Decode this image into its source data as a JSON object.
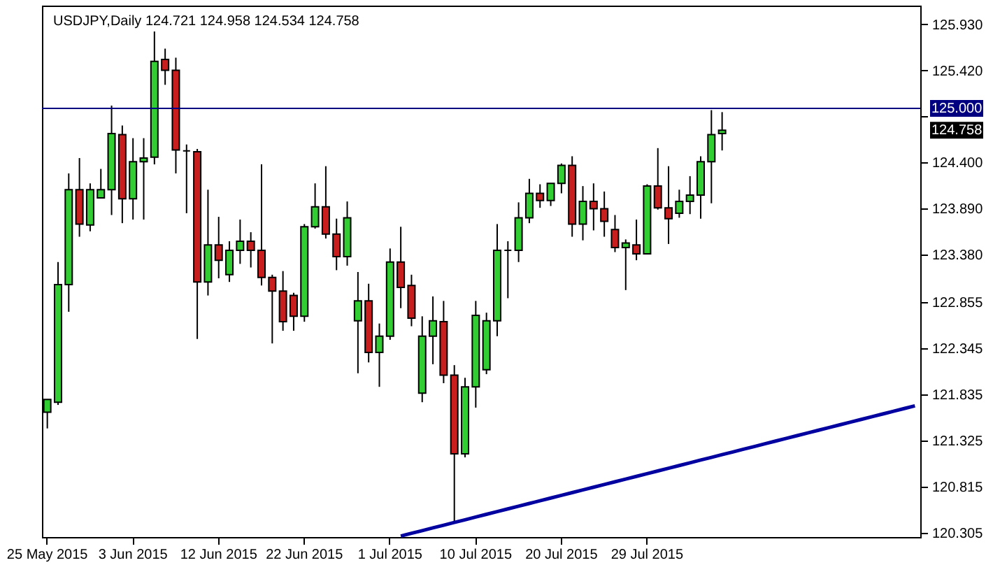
{
  "chart_data": {
    "type": "candlestick",
    "title": "USDJPY,Daily 124.721 124.958 124.534 124.758",
    "categories": [
      "25 May 2015",
      null,
      null,
      null,
      null,
      null,
      null,
      null,
      "3 Jun 2015",
      null,
      null,
      null,
      null,
      null,
      null,
      null,
      "12 Jun 2015",
      null,
      null,
      null,
      null,
      null,
      null,
      null,
      "22 Jun 2015",
      null,
      null,
      null,
      null,
      null,
      null,
      null,
      "1 Jul 2015",
      null,
      null,
      null,
      null,
      null,
      null,
      null,
      "10 Jul 2015",
      null,
      null,
      null,
      null,
      null,
      null,
      null,
      "20 Jul 2015",
      null,
      null,
      null,
      null,
      null,
      null,
      null,
      "29 Jul 2015",
      null,
      null,
      null,
      null,
      null,
      null,
      null,
      null,
      null,
      null,
      null,
      null,
      null,
      null,
      null,
      null,
      null,
      null,
      null,
      null,
      null,
      null,
      null,
      null,
      null
    ],
    "ohlc": [
      [
        121.64,
        121.78,
        121.46,
        121.78
      ],
      [
        121.75,
        123.3,
        121.72,
        123.05
      ],
      [
        123.05,
        124.28,
        122.75,
        124.1
      ],
      [
        124.1,
        124.45,
        123.58,
        123.72
      ],
      [
        123.71,
        124.17,
        123.64,
        124.1
      ],
      [
        124.01,
        124.33,
        124.01,
        124.1
      ],
      [
        124.1,
        125.03,
        123.82,
        124.72
      ],
      [
        124.71,
        124.81,
        123.73,
        124.0
      ],
      [
        124.0,
        124.67,
        123.77,
        124.41
      ],
      [
        124.41,
        124.67,
        123.77,
        124.45
      ],
      [
        124.46,
        125.85,
        124.38,
        125.52
      ],
      [
        125.54,
        125.66,
        125.26,
        125.42
      ],
      [
        125.42,
        125.56,
        124.28,
        124.54
      ],
      [
        124.53,
        124.6,
        123.84,
        124.53
      ],
      [
        124.52,
        124.55,
        122.45,
        123.08
      ],
      [
        123.08,
        124.1,
        122.93,
        123.49
      ],
      [
        123.49,
        123.8,
        123.12,
        123.32
      ],
      [
        123.16,
        123.53,
        123.08,
        123.43
      ],
      [
        123.43,
        123.77,
        123.28,
        123.53
      ],
      [
        123.53,
        123.63,
        123.24,
        123.43
      ],
      [
        123.43,
        124.38,
        123.04,
        123.13
      ],
      [
        123.13,
        123.16,
        122.4,
        122.98
      ],
      [
        122.98,
        123.2,
        122.54,
        122.64
      ],
      [
        122.93,
        122.96,
        122.54,
        122.7
      ],
      [
        122.7,
        123.72,
        122.64,
        123.69
      ],
      [
        123.69,
        124.17,
        123.67,
        123.91
      ],
      [
        123.91,
        124.36,
        123.56,
        123.61
      ],
      [
        123.61,
        123.78,
        123.21,
        123.36
      ],
      [
        123.36,
        123.97,
        123.26,
        123.79
      ],
      [
        122.65,
        123.19,
        122.07,
        122.87
      ],
      [
        122.87,
        123.06,
        122.19,
        122.3
      ],
      [
        122.3,
        122.62,
        121.92,
        122.48
      ],
      [
        122.48,
        123.45,
        122.44,
        123.3
      ],
      [
        123.3,
        123.69,
        122.79,
        123.02
      ],
      [
        123.04,
        123.16,
        122.59,
        122.68
      ],
      [
        121.85,
        122.7,
        121.75,
        122.48
      ],
      [
        122.48,
        122.92,
        122.17,
        122.65
      ],
      [
        122.64,
        122.87,
        121.96,
        122.05
      ],
      [
        122.05,
        122.16,
        120.42,
        121.18
      ],
      [
        121.18,
        122.02,
        121.14,
        121.92
      ],
      [
        121.92,
        122.87,
        121.69,
        122.71
      ],
      [
        122.11,
        122.74,
        122.06,
        122.65
      ],
      [
        122.65,
        123.72,
        122.48,
        123.43
      ],
      [
        123.43,
        123.53,
        122.9,
        123.43
      ],
      [
        123.43,
        123.96,
        123.3,
        123.79
      ],
      [
        123.79,
        124.22,
        123.73,
        124.06
      ],
      [
        124.06,
        124.16,
        123.9,
        123.98
      ],
      [
        123.98,
        124.17,
        123.92,
        124.17
      ],
      [
        124.17,
        124.39,
        124.06,
        124.37
      ],
      [
        124.37,
        124.47,
        123.58,
        123.72
      ],
      [
        123.72,
        124.14,
        123.54,
        123.97
      ],
      [
        123.97,
        124.17,
        123.65,
        123.89
      ],
      [
        123.89,
        124.08,
        123.58,
        123.75
      ],
      [
        123.66,
        123.82,
        123.41,
        123.46
      ],
      [
        123.46,
        123.55,
        122.99,
        123.51
      ],
      [
        123.49,
        123.77,
        123.32,
        123.39
      ],
      [
        123.39,
        124.16,
        123.39,
        124.14
      ],
      [
        124.14,
        124.56,
        123.88,
        123.9
      ],
      [
        123.9,
        124.36,
        123.5,
        123.78
      ],
      [
        123.84,
        124.1,
        123.79,
        123.97
      ],
      [
        123.97,
        124.25,
        123.83,
        124.04
      ],
      [
        124.04,
        124.47,
        123.78,
        124.41
      ],
      [
        124.41,
        124.98,
        123.95,
        124.71
      ],
      [
        124.721,
        124.958,
        124.534,
        124.758
      ],
      null,
      null,
      null,
      null,
      null,
      null,
      null,
      null,
      null,
      null,
      null,
      null,
      null,
      null,
      null,
      null,
      null,
      null
    ],
    "colors": [
      "#32cd32",
      "#32cd32",
      "#32cd32",
      "#c81e1e",
      "#32cd32",
      "#32cd32",
      "#32cd32",
      "#c81e1e",
      "#32cd32",
      "#32cd32",
      "#32cd32",
      "#c81e1e",
      "#c81e1e",
      "#000000",
      "#c81e1e",
      "#32cd32",
      "#c81e1e",
      "#32cd32",
      "#32cd32",
      "#c81e1e",
      "#c81e1e",
      "#c81e1e",
      "#c81e1e",
      "#c81e1e",
      "#32cd32",
      "#32cd32",
      "#c81e1e",
      "#c81e1e",
      "#32cd32",
      "#32cd32",
      "#c81e1e",
      "#32cd32",
      "#32cd32",
      "#c81e1e",
      "#c81e1e",
      "#32cd32",
      "#32cd32",
      "#c81e1e",
      "#c81e1e",
      "#32cd32",
      "#32cd32",
      "#32cd32",
      "#32cd32",
      "#000000",
      "#32cd32",
      "#32cd32",
      "#c81e1e",
      "#32cd32",
      "#32cd32",
      "#c81e1e",
      "#32cd32",
      "#c81e1e",
      "#c81e1e",
      "#c81e1e",
      "#32cd32",
      "#c81e1e",
      "#32cd32",
      "#c81e1e",
      "#c81e1e",
      "#32cd32",
      "#32cd32",
      "#32cd32",
      "#32cd32",
      "#32cd32",
      null,
      null,
      null,
      null,
      null,
      null,
      null,
      null,
      null,
      null,
      null,
      null,
      null,
      null,
      null,
      null,
      null,
      null
    ],
    "series": [
      {
        "type": "line",
        "color": "#0000a0",
        "values": [
          null,
          null,
          null,
          null,
          null,
          null,
          null,
          null,
          null,
          null,
          null,
          null,
          null,
          null,
          null,
          null,
          null,
          null,
          null,
          null,
          null,
          null,
          null,
          null,
          null,
          null,
          null,
          null,
          null,
          null,
          null,
          null,
          null,
          120.27,
          120.3,
          120.33,
          120.36,
          120.39,
          120.42,
          120.45,
          120.48,
          120.51,
          120.54,
          120.57,
          120.6,
          120.63,
          120.66,
          120.69,
          120.72,
          120.75,
          120.78,
          120.81,
          120.84,
          120.87,
          120.9,
          120.93,
          120.96,
          120.99,
          121.02,
          121.05,
          121.08,
          121.11,
          121.14,
          121.17,
          121.2,
          121.23,
          121.26,
          121.29,
          121.32,
          121.35,
          121.38,
          121.41,
          121.44,
          121.47,
          121.5,
          121.53,
          121.56,
          121.59,
          121.62,
          121.65,
          121.68,
          121.71
        ]
      }
    ],
    "ref_lines": [
      {
        "axis": "y",
        "value": 125.0,
        "label": "125.000",
        "color": "#000080"
      }
    ],
    "annotations": [
      "124.758"
    ],
    "ylim": [
      120.259,
      126.136
    ],
    "yticks": [
      {
        "value": 125.93,
        "label": "125.930"
      },
      {
        "value": 125.42,
        "label": "125.420"
      },
      {
        "value": 124.91,
        "label": null
      },
      {
        "value": 124.4,
        "label": "124.400"
      },
      {
        "value": 123.89,
        "label": "123.890"
      },
      {
        "value": 123.38,
        "label": "123.380"
      },
      122.855,
      122.345,
      121.835,
      121.325,
      120.815,
      120.305
    ],
    "grid": false
  }
}
